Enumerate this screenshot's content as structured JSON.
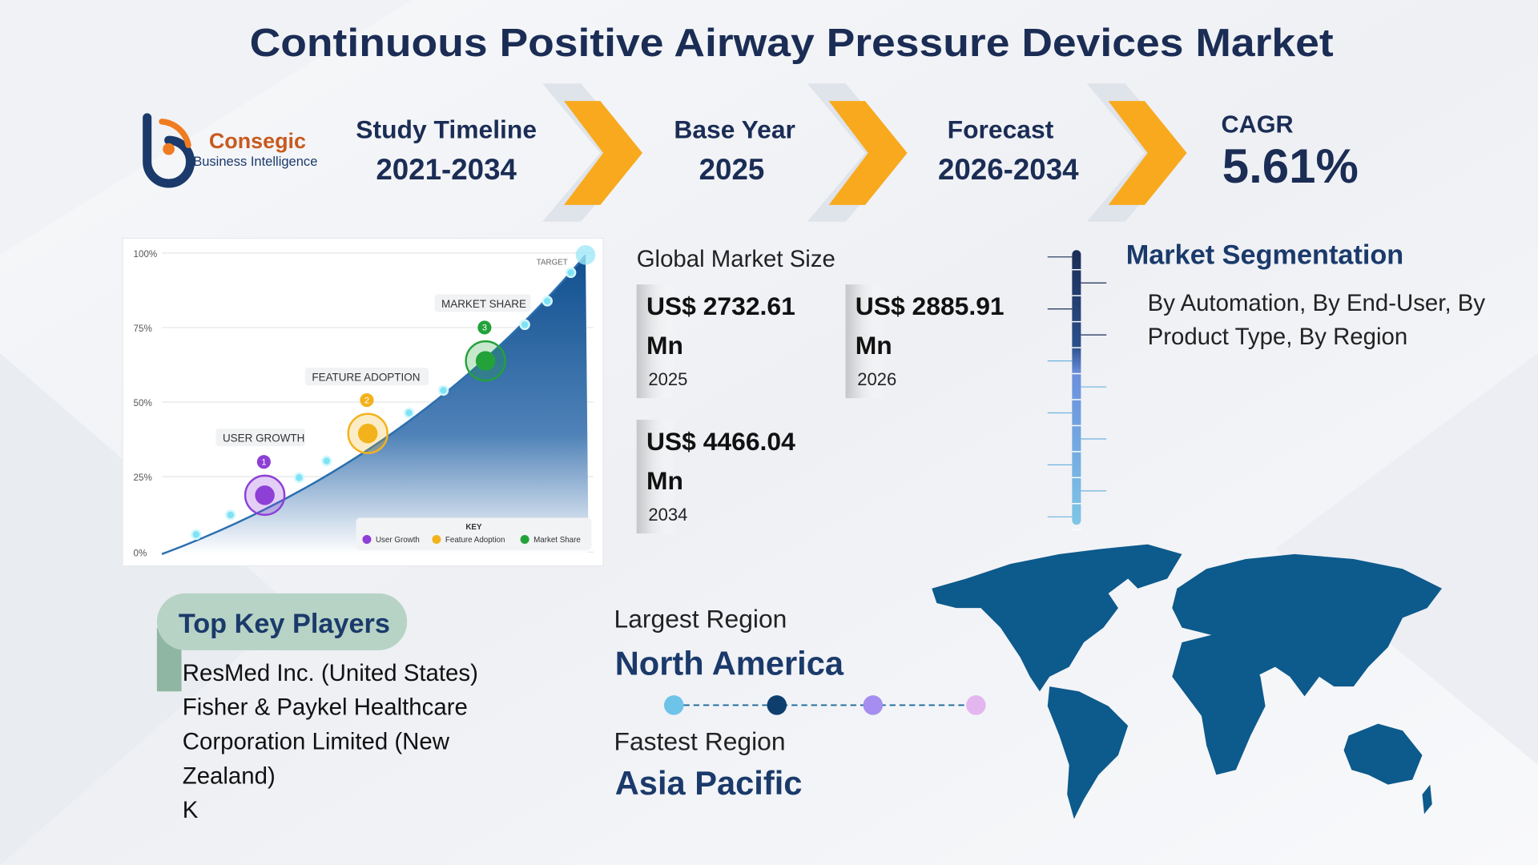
{
  "header": {
    "title": "Continuous Positive Airway Pressure Devices Market"
  },
  "logo": {
    "name": "Consegic",
    "tagline": "Business Intelligence"
  },
  "timeline": [
    {
      "label": "Study Timeline",
      "value": "2021-2034"
    },
    {
      "label": "Base Year",
      "value": "2025"
    },
    {
      "label": "Forecast",
      "value": "2026-2034"
    },
    {
      "label": "CAGR",
      "value": "5.61%"
    }
  ],
  "illustration": {
    "yticks": [
      "100%",
      "75%",
      "50%",
      "25%",
      "0%"
    ],
    "target": "TARGET",
    "milestones": [
      {
        "number": "1",
        "label": "USER GROWTH"
      },
      {
        "number": "2",
        "label": "FEATURE ADOPTION"
      },
      {
        "number": "3",
        "label": "MARKET SHARE"
      }
    ],
    "key": {
      "title": "KEY",
      "items": [
        "User Growth",
        "Feature Adoption",
        "Market Share"
      ]
    }
  },
  "market_size": {
    "title": "Global Market Size",
    "cards": [
      {
        "value": "US$ 2732.61 Mn",
        "year": "2025"
      },
      {
        "value": "US$ 2885.91 Mn",
        "year": "2026"
      },
      {
        "value": "US$ 4466.04 Mn",
        "year": "2034"
      }
    ]
  },
  "segmentation": {
    "title": "Market Segmentation",
    "text": "By Automation, By End-User, By Product Type, By Region"
  },
  "key_players": {
    "title": "Top Key Players",
    "items": [
      "ResMed Inc. (United States)",
      "Fisher & Paykel Healthcare Corporation Limited (New Zealand)",
      "K"
    ]
  },
  "regions": {
    "largest_label": "Largest Region",
    "largest": "North America",
    "fastest_label": "Fastest Region",
    "fastest": "Asia Pacific"
  }
}
